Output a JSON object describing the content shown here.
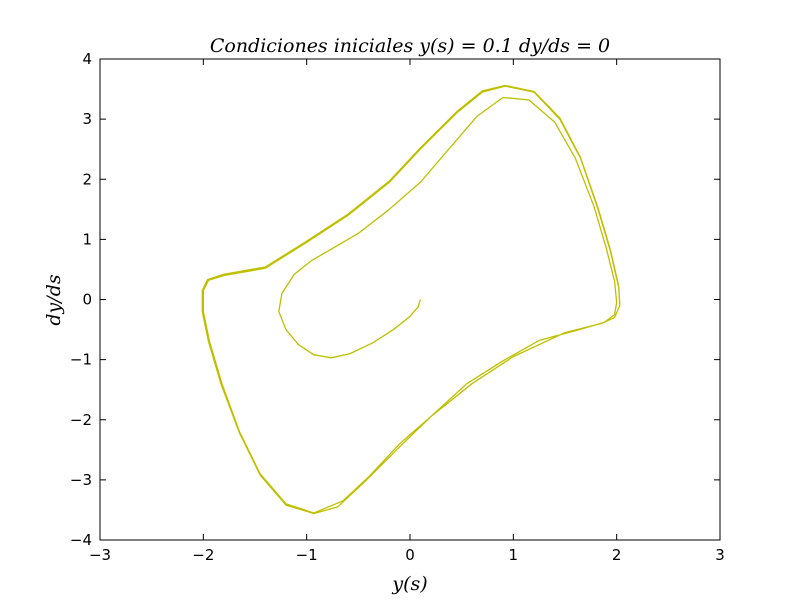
{
  "chart_data": {
    "type": "line",
    "title": "Condiciones iniciales y(s) = 0.1    dy/ds = 0",
    "xlabel": "y(s)",
    "ylabel": "dy/ds",
    "xlim": [
      -3,
      3
    ],
    "ylim": [
      -4,
      4
    ],
    "xticks": [
      "−3",
      "−2",
      "−1",
      "0",
      "1",
      "2",
      "3"
    ],
    "yticks": [
      "−4",
      "−3",
      "−2",
      "−1",
      "0",
      "1",
      "2",
      "3",
      "4"
    ],
    "grid": false,
    "series": [
      {
        "color": "#bfbf00",
        "points": [
          [
            0.1,
            0.0
          ],
          [
            0.08,
            -0.12
          ],
          [
            0.0,
            -0.28
          ],
          [
            -0.16,
            -0.5
          ],
          [
            -0.36,
            -0.72
          ],
          [
            -0.58,
            -0.9
          ],
          [
            -0.76,
            -0.97
          ],
          [
            -0.93,
            -0.92
          ],
          [
            -1.08,
            -0.75
          ],
          [
            -1.2,
            -0.5
          ],
          [
            -1.27,
            -0.2
          ],
          [
            -1.24,
            0.1
          ],
          [
            -1.12,
            0.42
          ],
          [
            -0.95,
            0.65
          ],
          [
            -0.75,
            0.85
          ],
          [
            -0.5,
            1.1
          ],
          [
            -0.2,
            1.5
          ],
          [
            0.1,
            1.95
          ],
          [
            0.4,
            2.55
          ],
          [
            0.65,
            3.05
          ],
          [
            0.9,
            3.36
          ],
          [
            1.15,
            3.32
          ],
          [
            1.4,
            2.95
          ],
          [
            1.6,
            2.35
          ],
          [
            1.78,
            1.55
          ],
          [
            1.9,
            0.85
          ],
          [
            1.98,
            0.3
          ],
          [
            2.0,
            -0.05
          ],
          [
            1.98,
            -0.25
          ],
          [
            1.88,
            -0.38
          ],
          [
            1.6,
            -0.52
          ],
          [
            1.25,
            -0.68
          ],
          [
            0.9,
            -1.02
          ],
          [
            0.55,
            -1.4
          ],
          [
            0.2,
            -1.95
          ],
          [
            -0.1,
            -2.4
          ],
          [
            -0.4,
            -2.95
          ],
          [
            -0.65,
            -3.35
          ],
          [
            -0.93,
            -3.55
          ],
          [
            -1.2,
            -3.4
          ],
          [
            -1.45,
            -2.9
          ],
          [
            -1.65,
            -2.2
          ],
          [
            -1.82,
            -1.4
          ],
          [
            -1.94,
            -0.7
          ],
          [
            -2.0,
            -0.2
          ],
          [
            -2.0,
            0.15
          ],
          [
            -1.95,
            0.32
          ],
          [
            -1.8,
            0.4
          ],
          [
            -1.4,
            0.52
          ],
          [
            -1.0,
            0.95
          ],
          [
            -0.6,
            1.4
          ],
          [
            -0.2,
            1.95
          ],
          [
            0.1,
            2.5
          ],
          [
            0.45,
            3.1
          ],
          [
            0.7,
            3.45
          ],
          [
            0.92,
            3.55
          ],
          [
            1.2,
            3.45
          ],
          [
            1.45,
            3.0
          ],
          [
            1.65,
            2.35
          ],
          [
            1.82,
            1.5
          ],
          [
            1.94,
            0.8
          ],
          [
            2.02,
            0.2
          ],
          [
            2.03,
            -0.1
          ],
          [
            1.98,
            -0.3
          ],
          [
            1.85,
            -0.4
          ],
          [
            1.5,
            -0.55
          ],
          [
            1.0,
            -0.95
          ],
          [
            0.6,
            -1.4
          ],
          [
            0.2,
            -1.95
          ],
          [
            -0.1,
            -2.45
          ],
          [
            -0.45,
            -3.05
          ],
          [
            -0.7,
            -3.45
          ],
          [
            -0.93,
            -3.56
          ],
          [
            -1.2,
            -3.42
          ],
          [
            -1.45,
            -2.92
          ],
          [
            -1.65,
            -2.22
          ],
          [
            -1.83,
            -1.4
          ],
          [
            -1.95,
            -0.7
          ],
          [
            -2.01,
            -0.2
          ],
          [
            -2.01,
            0.15
          ],
          [
            -1.96,
            0.33
          ],
          [
            -1.8,
            0.42
          ],
          [
            -1.4,
            0.54
          ],
          [
            -1.0,
            0.97
          ],
          [
            -0.6,
            1.42
          ],
          [
            -0.2,
            1.97
          ],
          [
            0.1,
            2.52
          ],
          [
            0.45,
            3.12
          ],
          [
            0.7,
            3.47
          ],
          [
            0.92,
            3.56
          ],
          [
            1.2,
            3.46
          ],
          [
            1.45,
            3.02
          ],
          [
            1.65,
            2.36
          ],
          [
            1.82,
            1.52
          ],
          [
            1.94,
            0.82
          ],
          [
            2.02,
            0.22
          ],
          [
            2.03,
            -0.08
          ]
        ]
      }
    ]
  }
}
